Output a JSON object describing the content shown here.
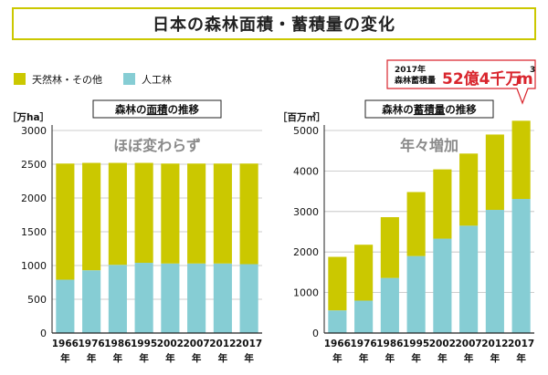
{
  "header": {
    "title": "日本の森林面積・蓄積量の変化"
  },
  "legend": [
    {
      "label": "天然林・その他",
      "color": "#cbc800"
    },
    {
      "label": "人工林",
      "color": "#86cdd4"
    }
  ],
  "callout": {
    "line1": "2017年",
    "line2": "森林蓄積量",
    "value": "52億4千万",
    "unit": "m",
    "sup": "3"
  },
  "chart_data": [
    {
      "type": "bar",
      "stacked": true,
      "title": "森林の面積の推移",
      "title_highlight": "面積",
      "overlay_text": "ほぼ変わらず",
      "unit_label": "［万ha］",
      "categories": [
        "1966",
        "1976",
        "1986",
        "1995",
        "2002",
        "2007",
        "2012",
        "2017"
      ],
      "category_suffix": "年",
      "ylim": [
        0,
        3000
      ],
      "yticks": [
        0,
        500,
        1000,
        1500,
        2000,
        2500,
        3000
      ],
      "grid": true,
      "series": [
        {
          "name": "人工林",
          "color": "#86cdd4",
          "values": [
            790,
            930,
            1010,
            1040,
            1030,
            1030,
            1030,
            1020
          ]
        },
        {
          "name": "天然林・その他",
          "color": "#cbc800",
          "values": [
            1720,
            1590,
            1510,
            1480,
            1480,
            1480,
            1480,
            1490
          ]
        }
      ]
    },
    {
      "type": "bar",
      "stacked": true,
      "title": "森林の蓄積量の推移",
      "title_highlight": "蓄積量",
      "overlay_text": "年々増加",
      "unit_label": "［百万㎥］",
      "categories": [
        "1966",
        "1976",
        "1986",
        "1995",
        "2002",
        "2007",
        "2012",
        "2017"
      ],
      "category_suffix": "年",
      "ylim": [
        0,
        5000
      ],
      "yticks": [
        0,
        1000,
        2000,
        3000,
        4000,
        5000
      ],
      "grid": true,
      "series": [
        {
          "name": "人工林",
          "color": "#86cdd4",
          "values": [
            560,
            800,
            1360,
            1900,
            2330,
            2650,
            3040,
            3310
          ]
        },
        {
          "name": "天然林・その他",
          "color": "#cbc800",
          "values": [
            1320,
            1380,
            1500,
            1580,
            1710,
            1780,
            1860,
            1930
          ]
        }
      ]
    }
  ]
}
